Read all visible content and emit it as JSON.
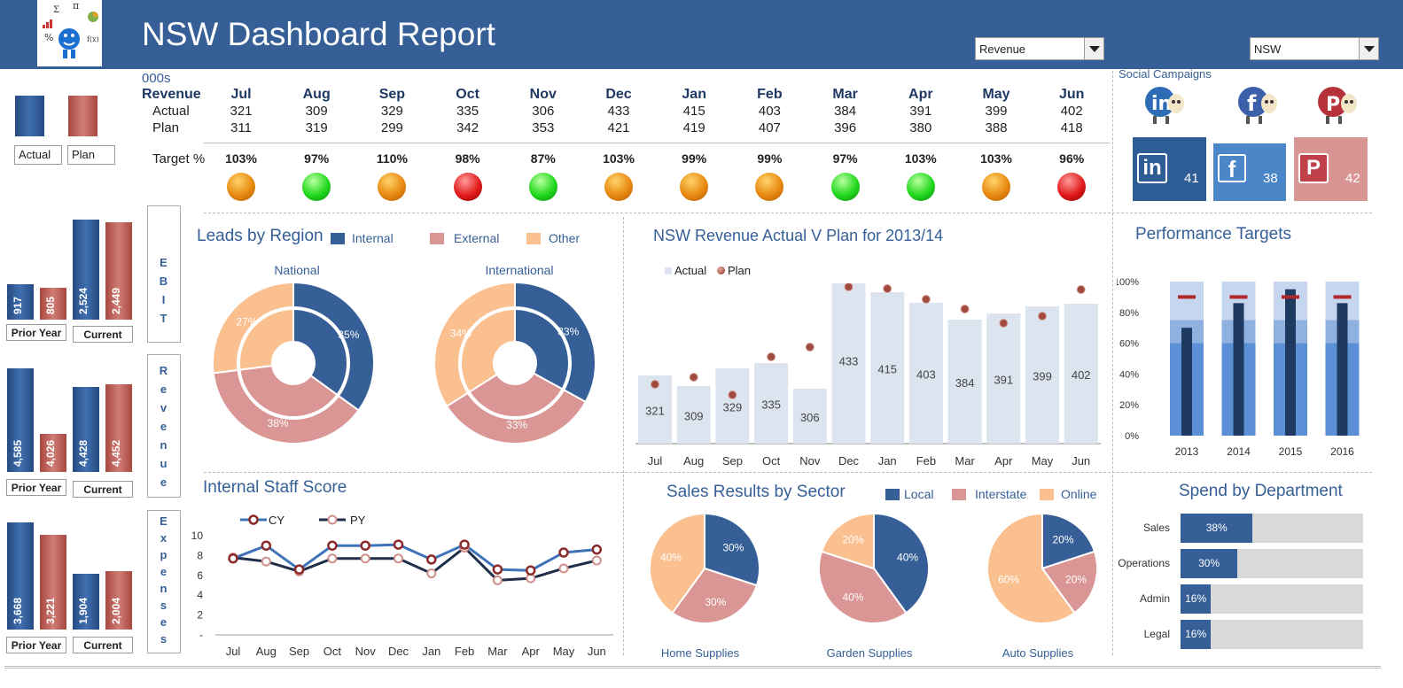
{
  "header": {
    "title": "NSW Dashboard Report",
    "measure_select": "Revenue",
    "region_select": "NSW",
    "logo_glyphs": [
      "Σ",
      "π",
      "%",
      "f(x)"
    ]
  },
  "table": {
    "unit": "000s",
    "row_header": "Revenue",
    "actual_label": "Actual",
    "plan_label": "Plan",
    "target_label": "Target %",
    "months": [
      "Jul",
      "Aug",
      "Sep",
      "Oct",
      "Nov",
      "Dec",
      "Jan",
      "Feb",
      "Mar",
      "Apr",
      "May",
      "Jun"
    ],
    "actual": [
      321,
      309,
      329,
      335,
      306,
      433,
      415,
      403,
      384,
      391,
      399,
      402
    ],
    "plan": [
      311,
      319,
      299,
      342,
      353,
      421,
      419,
      407,
      396,
      380,
      388,
      418
    ],
    "target_pct": [
      "103%",
      "97%",
      "110%",
      "98%",
      "87%",
      "103%",
      "99%",
      "99%",
      "97%",
      "103%",
      "103%",
      "96%"
    ],
    "status": [
      "orange",
      "green",
      "orange",
      "red",
      "green",
      "orange",
      "orange",
      "orange",
      "green",
      "green",
      "orange",
      "red"
    ]
  },
  "legend_top": {
    "actual": "Actual",
    "plan": "Plan"
  },
  "mini_charts": [
    {
      "side_label": "EBIT",
      "prior_label": "Prior Year",
      "current_label": "Current",
      "prior_actual": "917",
      "prior_plan": "805",
      "current_actual": "2,524",
      "current_plan": "2,449"
    },
    {
      "side_label": "Revenue",
      "prior_label": "Prior Year",
      "current_label": "Current",
      "prior_actual": "4,585",
      "prior_plan": "4,026",
      "current_actual": "4,428",
      "current_plan": "4,452"
    },
    {
      "side_label": "Expenses",
      "prior_label": "Prior Year",
      "current_label": "Current",
      "prior_actual": "3,668",
      "prior_plan": "3,221",
      "current_actual": "1,904",
      "current_plan": "2,004"
    }
  ],
  "social": {
    "title": "Social Campaigns",
    "items": [
      {
        "name": "in",
        "count": "41",
        "color": "#2e5c94"
      },
      {
        "name": "f",
        "count": "38",
        "color": "#4a86c8"
      },
      {
        "name": "P",
        "count": "42",
        "color": "#d99594"
      }
    ]
  },
  "leads": {
    "title": "Leads by Region",
    "legend": [
      "Internal",
      "External",
      "Other"
    ],
    "colors": [
      "#355f96",
      "#da9694",
      "#fac090"
    ],
    "charts": [
      {
        "name": "National",
        "values": [
          35,
          38,
          27
        ],
        "labels": [
          "35%",
          "38%",
          "27%"
        ]
      },
      {
        "name": "International",
        "values": [
          33,
          33,
          34
        ],
        "labels": [
          "33%",
          "33%",
          "34%"
        ]
      }
    ]
  },
  "revenue_chart": {
    "title": "NSW Revenue Actual V Plan for 2013/14",
    "legend": [
      "Actual",
      "Plan"
    ]
  },
  "performance": {
    "title": "Performance Targets",
    "y_ticks": [
      "100%",
      "80%",
      "60%",
      "40%",
      "20%",
      "0%"
    ],
    "years": [
      "2013",
      "2014",
      "2015",
      "2016"
    ],
    "actual": [
      0.7,
      0.86,
      0.95,
      0.86
    ],
    "target": [
      0.9,
      0.9,
      0.9,
      0.9
    ]
  },
  "staff": {
    "title": "Internal Staff Score",
    "legend": [
      "CY",
      "PY"
    ],
    "y_ticks": [
      "10",
      "8",
      "6",
      "4",
      "2",
      "-"
    ],
    "months": [
      "Jul",
      "Aug",
      "Sep",
      "Oct",
      "Nov",
      "Dec",
      "Jan",
      "Feb",
      "Mar",
      "Apr",
      "May",
      "Jun"
    ],
    "cy": [
      7.7,
      9.0,
      6.6,
      9.0,
      9.0,
      9.1,
      7.6,
      9.1,
      6.6,
      6.5,
      8.3,
      8.6
    ],
    "py": [
      7.8,
      7.4,
      6.4,
      7.7,
      7.7,
      7.7,
      6.2,
      8.8,
      5.5,
      5.7,
      6.7,
      7.5
    ]
  },
  "sales": {
    "title": "Sales Results by Sector",
    "legend": [
      "Local",
      "Interstate",
      "Online"
    ],
    "colors": [
      "#355f96",
      "#da9694",
      "#fac090"
    ],
    "charts": [
      {
        "name": "Home Supplies",
        "values": [
          30,
          30,
          40
        ],
        "labels": [
          "30%",
          "30%",
          "40%"
        ]
      },
      {
        "name": "Garden Supplies",
        "values": [
          40,
          40,
          20
        ],
        "labels": [
          "40%",
          "40%",
          "20%"
        ]
      },
      {
        "name": "Auto Supplies",
        "values": [
          20,
          20,
          60
        ],
        "labels": [
          "20%",
          "20%",
          "60%"
        ]
      }
    ]
  },
  "spend": {
    "title": "Spend by Department",
    "items": [
      {
        "name": "Sales",
        "value": 38,
        "label": "38%"
      },
      {
        "name": "Operations",
        "value": 30,
        "label": "30%"
      },
      {
        "name": "Admin",
        "value": 16,
        "label": "16%"
      },
      {
        "name": "Legal",
        "value": 16,
        "label": "16%"
      }
    ]
  },
  "chart_data": [
    {
      "type": "bar",
      "title": "NSW Revenue Actual V Plan for 2013/14",
      "categories": [
        "Jul",
        "Aug",
        "Sep",
        "Oct",
        "Nov",
        "Dec",
        "Jan",
        "Feb",
        "Mar",
        "Apr",
        "May",
        "Jun"
      ],
      "series": [
        {
          "name": "Actual",
          "values": [
            321,
            309,
            329,
            335,
            306,
            433,
            415,
            403,
            384,
            391,
            399,
            402
          ]
        },
        {
          "name": "Plan",
          "values": [
            311,
            319,
            299,
            342,
            353,
            421,
            419,
            407,
            396,
            380,
            388,
            418
          ]
        }
      ],
      "legend_position": "top-left"
    },
    {
      "type": "line",
      "title": "Internal Staff Score",
      "categories": [
        "Jul",
        "Aug",
        "Sep",
        "Oct",
        "Nov",
        "Dec",
        "Jan",
        "Feb",
        "Mar",
        "Apr",
        "May",
        "Jun"
      ],
      "series": [
        {
          "name": "CY",
          "values": [
            7.7,
            9.0,
            6.6,
            9.0,
            9.0,
            9.1,
            7.6,
            9.1,
            6.6,
            6.5,
            8.3,
            8.6
          ]
        },
        {
          "name": "PY",
          "values": [
            7.8,
            7.4,
            6.4,
            7.7,
            7.7,
            7.7,
            6.2,
            8.8,
            5.5,
            5.7,
            6.7,
            7.5
          ]
        }
      ],
      "ylim": [
        0,
        10
      ]
    },
    {
      "type": "bar",
      "title": "Performance Targets",
      "categories": [
        "2013",
        "2014",
        "2015",
        "2016"
      ],
      "series": [
        {
          "name": "Actual",
          "values": [
            70,
            86,
            95,
            86
          ]
        },
        {
          "name": "Target",
          "values": [
            90,
            90,
            90,
            90
          ]
        }
      ],
      "ylim": [
        0,
        100
      ]
    },
    {
      "type": "pie",
      "title": "Leads by Region",
      "categories": [
        "Internal",
        "External",
        "Other"
      ],
      "series": [
        {
          "name": "National",
          "values": [
            35,
            38,
            27
          ]
        },
        {
          "name": "International",
          "values": [
            33,
            33,
            34
          ]
        }
      ]
    },
    {
      "type": "pie",
      "title": "Sales Results by Sector",
      "categories": [
        "Local",
        "Interstate",
        "Online"
      ],
      "series": [
        {
          "name": "Home Supplies",
          "values": [
            30,
            30,
            40
          ]
        },
        {
          "name": "Garden Supplies",
          "values": [
            40,
            40,
            20
          ]
        },
        {
          "name": "Auto Supplies",
          "values": [
            20,
            20,
            60
          ]
        }
      ]
    },
    {
      "type": "bar",
      "title": "Spend by Department",
      "categories": [
        "Sales",
        "Operations",
        "Admin",
        "Legal"
      ],
      "values": [
        38,
        30,
        16,
        16
      ]
    }
  ]
}
